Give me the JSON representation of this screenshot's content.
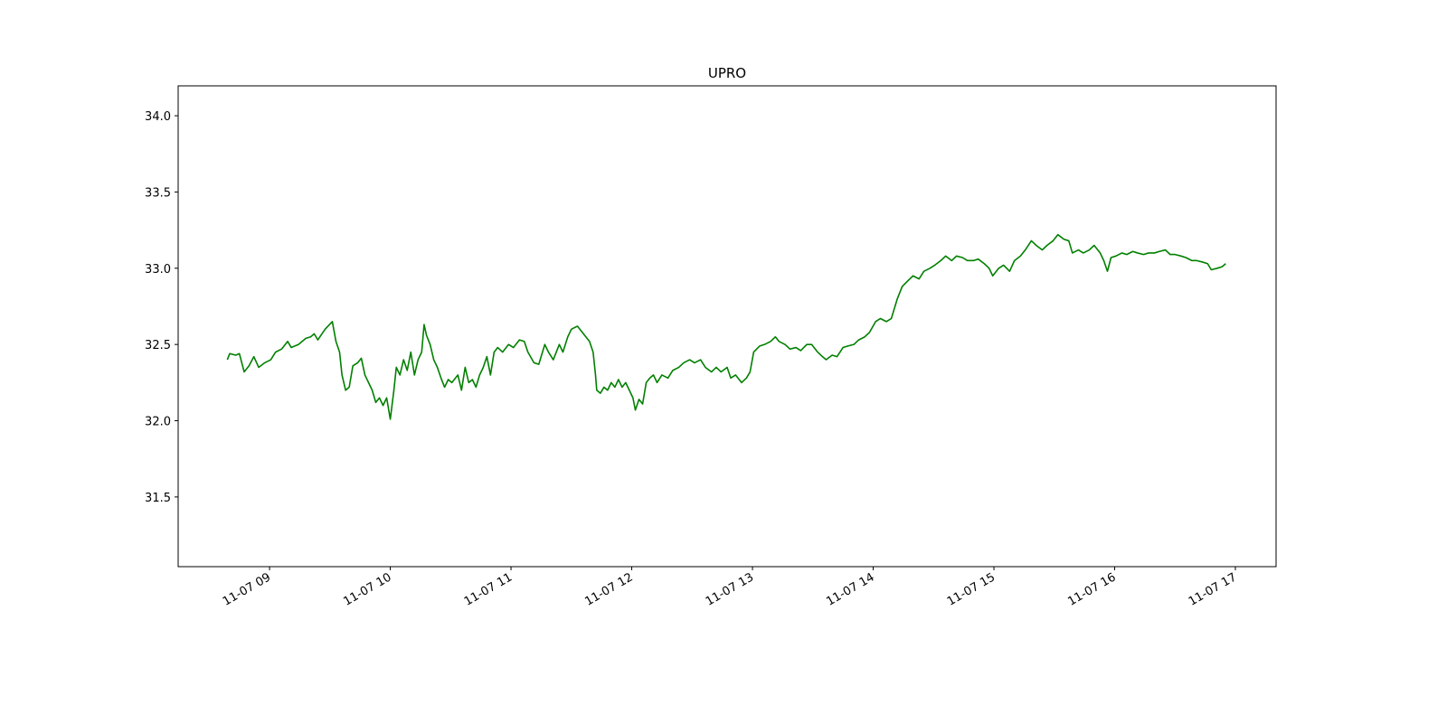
{
  "chart_data": {
    "type": "line",
    "title": "UPRO",
    "color": "#008000",
    "x": [
      8.65,
      8.67,
      8.72,
      8.75,
      8.77,
      8.79,
      8.83,
      8.87,
      8.91,
      8.96,
      9.01,
      9.05,
      9.1,
      9.15,
      9.18,
      9.24,
      9.3,
      9.34,
      9.37,
      9.4,
      9.46,
      9.52,
      9.55,
      9.58,
      9.6,
      9.63,
      9.66,
      9.69,
      9.73,
      9.76,
      9.79,
      9.82,
      9.85,
      9.88,
      9.91,
      9.94,
      9.97,
      10.0,
      10.03,
      10.05,
      10.08,
      10.11,
      10.14,
      10.17,
      10.2,
      10.23,
      10.26,
      10.28,
      10.3,
      10.33,
      10.36,
      10.39,
      10.42,
      10.45,
      10.48,
      10.51,
      10.56,
      10.59,
      10.62,
      10.65,
      10.68,
      10.71,
      10.74,
      10.77,
      10.8,
      10.83,
      10.86,
      10.89,
      10.93,
      10.98,
      11.02,
      11.07,
      11.11,
      11.14,
      11.19,
      11.23,
      11.28,
      11.31,
      11.35,
      11.4,
      11.43,
      11.47,
      11.5,
      11.55,
      11.59,
      11.62,
      11.65,
      11.68,
      11.7,
      11.71,
      11.74,
      11.77,
      11.8,
      11.83,
      11.86,
      11.89,
      11.92,
      11.95,
      11.98,
      12.01,
      12.03,
      12.06,
      12.09,
      12.12,
      12.15,
      12.18,
      12.21,
      12.25,
      12.3,
      12.34,
      12.39,
      12.43,
      12.48,
      12.52,
      12.57,
      12.61,
      12.66,
      12.7,
      12.74,
      12.79,
      12.82,
      12.86,
      12.91,
      12.95,
      12.98,
      13.01,
      13.06,
      13.1,
      13.15,
      13.19,
      13.22,
      13.27,
      13.31,
      13.36,
      13.4,
      13.45,
      13.49,
      13.54,
      13.58,
      13.61,
      13.66,
      13.7,
      13.75,
      13.79,
      13.84,
      13.88,
      13.93,
      13.97,
      14.02,
      14.06,
      14.11,
      14.15,
      14.2,
      14.24,
      14.29,
      14.33,
      14.38,
      14.42,
      14.47,
      14.51,
      14.56,
      14.6,
      14.65,
      14.69,
      14.74,
      14.78,
      14.83,
      14.87,
      14.92,
      14.96,
      14.99,
      15.04,
      15.08,
      15.13,
      15.17,
      15.22,
      15.26,
      15.31,
      15.35,
      15.4,
      15.44,
      15.49,
      15.53,
      15.58,
      15.62,
      15.65,
      15.7,
      15.74,
      15.79,
      15.83,
      15.88,
      15.91,
      15.94,
      15.97,
      16.01,
      16.06,
      16.1,
      16.15,
      16.19,
      16.24,
      16.28,
      16.33,
      16.37,
      16.42,
      16.46,
      16.5,
      16.55,
      16.59,
      16.64,
      16.68,
      16.73,
      16.77,
      16.8,
      16.85,
      16.89,
      16.92
    ],
    "values": [
      32.4,
      32.44,
      32.43,
      32.44,
      32.38,
      32.32,
      32.36,
      32.42,
      32.35,
      32.38,
      32.4,
      32.45,
      32.47,
      32.52,
      32.48,
      32.5,
      32.54,
      32.55,
      32.57,
      32.53,
      32.6,
      32.65,
      32.52,
      32.45,
      32.3,
      32.2,
      32.22,
      32.36,
      32.38,
      32.41,
      32.3,
      32.25,
      32.2,
      32.12,
      32.15,
      32.1,
      32.15,
      32.01,
      32.2,
      32.35,
      32.3,
      32.4,
      32.33,
      32.45,
      32.3,
      32.4,
      32.45,
      32.63,
      32.56,
      32.5,
      32.4,
      32.35,
      32.28,
      32.22,
      32.27,
      32.25,
      32.3,
      32.2,
      32.35,
      32.25,
      32.27,
      32.22,
      32.3,
      32.35,
      32.42,
      32.3,
      32.45,
      32.48,
      32.45,
      32.5,
      32.48,
      32.53,
      32.52,
      32.45,
      32.38,
      32.37,
      32.5,
      32.45,
      32.4,
      32.5,
      32.45,
      32.55,
      32.6,
      32.62,
      32.58,
      32.55,
      32.52,
      32.45,
      32.3,
      32.2,
      32.18,
      32.22,
      32.2,
      32.25,
      32.22,
      32.27,
      32.22,
      32.25,
      32.2,
      32.15,
      32.07,
      32.14,
      32.11,
      32.25,
      32.28,
      32.3,
      32.25,
      32.3,
      32.28,
      32.33,
      32.35,
      32.38,
      32.4,
      32.38,
      32.4,
      32.35,
      32.32,
      32.35,
      32.32,
      32.35,
      32.28,
      32.3,
      32.25,
      32.28,
      32.32,
      32.45,
      32.49,
      32.5,
      32.52,
      32.55,
      32.52,
      32.5,
      32.47,
      32.48,
      32.46,
      32.5,
      32.5,
      32.45,
      32.42,
      32.4,
      32.43,
      32.42,
      32.48,
      32.49,
      32.5,
      32.53,
      32.55,
      32.58,
      32.65,
      32.67,
      32.65,
      32.67,
      32.8,
      32.88,
      32.92,
      32.95,
      32.93,
      32.98,
      33.0,
      33.02,
      33.05,
      33.08,
      33.05,
      33.08,
      33.07,
      33.05,
      33.05,
      33.06,
      33.03,
      33.0,
      32.95,
      33.0,
      33.02,
      32.98,
      33.05,
      33.08,
      33.12,
      33.18,
      33.15,
      33.12,
      33.15,
      33.18,
      33.22,
      33.19,
      33.18,
      33.1,
      33.12,
      33.1,
      33.12,
      33.15,
      33.1,
      33.05,
      32.98,
      33.07,
      33.08,
      33.1,
      33.09,
      33.11,
      33.1,
      33.09,
      33.1,
      33.1,
      33.11,
      33.12,
      33.09,
      33.09,
      33.08,
      33.07,
      33.05,
      33.05,
      33.04,
      33.03,
      32.99,
      33.0,
      33.01,
      33.03
    ],
    "xlim": [
      8.243,
      17.337
    ],
    "xticks": [
      {
        "value": 9,
        "label": "11-07 09"
      },
      {
        "value": 10,
        "label": "11-07 10"
      },
      {
        "value": 11,
        "label": "11-07 11"
      },
      {
        "value": 12,
        "label": "11-07 12"
      },
      {
        "value": 13,
        "label": "11-07 13"
      },
      {
        "value": 14,
        "label": "11-07 14"
      },
      {
        "value": 15,
        "label": "11-07 15"
      },
      {
        "value": 16,
        "label": "11-07 16"
      },
      {
        "value": 17,
        "label": "11-07 17"
      }
    ],
    "ylim": [
      31.043,
      34.196
    ],
    "yticks": [
      {
        "value": 31.5,
        "label": "31.5"
      },
      {
        "value": 32,
        "label": "32.0"
      },
      32.5,
      {
        "value": 33,
        "label": "33.0"
      },
      33.5,
      {
        "value": 34,
        "label": "34.0"
      }
    ],
    "grid": false
  }
}
